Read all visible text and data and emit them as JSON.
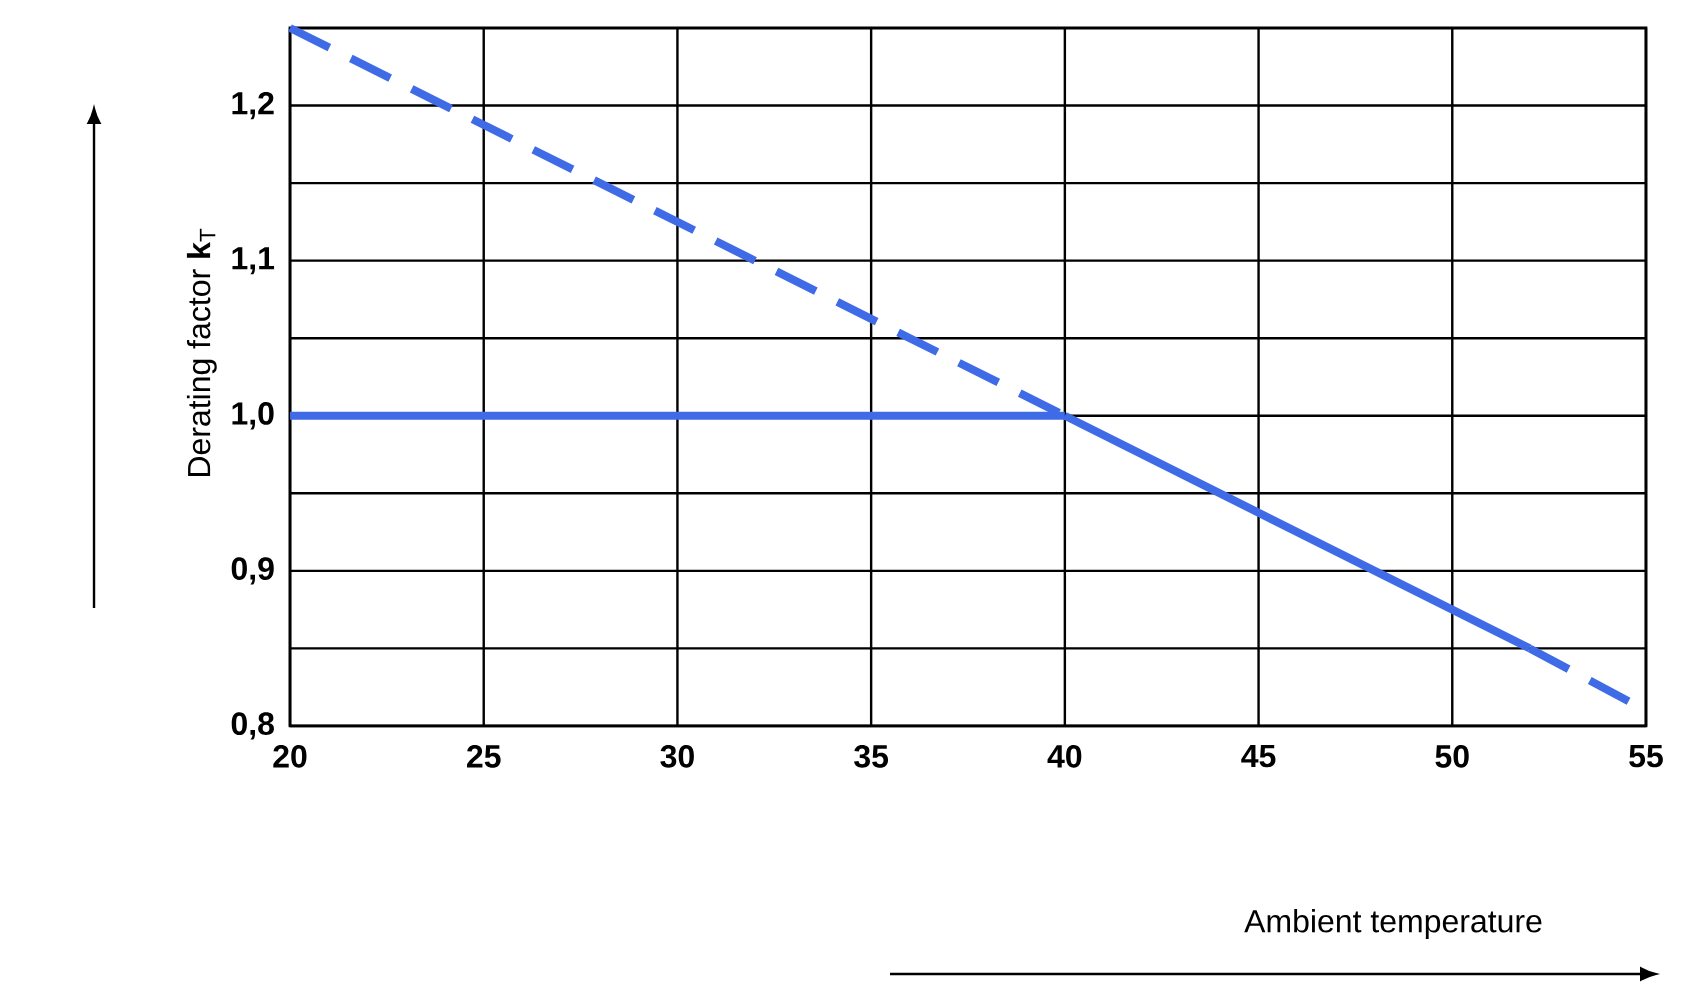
{
  "chart_data": {
    "type": "line",
    "xlabel": "Ambient temperature",
    "ylabel": "Derating factor **k**$_{T}$",
    "series": [
      {
        "x": [
          20,
          40
        ],
        "values": [
          1.25,
          1.0
        ],
        "color": "#3f6be6",
        "line_style": "dashed"
      },
      {
        "x": [
          20,
          40
        ],
        "values": [
          1.0,
          1.0
        ],
        "color": "#3f6be6",
        "line_style": "solid"
      },
      {
        "x": [
          40,
          52
        ],
        "values": [
          1.0,
          0.85
        ],
        "color": "#3f6be6",
        "line_style": "solid"
      },
      {
        "x": [
          52,
          55
        ],
        "values": [
          0.85,
          0.81
        ],
        "color": "#3f6be6",
        "line_style": "dashed"
      }
    ],
    "xlim": [
      20,
      55
    ],
    "xticks": [
      20,
      25,
      30,
      35,
      40,
      45,
      50,
      55
    ],
    "ylim": [
      0.8,
      1.25
    ],
    "yticks": [
      {
        "value": 0.8,
        "label": "0,8"
      },
      {
        "value": 0.85,
        "label": null
      },
      {
        "value": 0.9,
        "label": "0,9"
      },
      {
        "value": 0.95,
        "label": null
      },
      {
        "value": 1.0,
        "label": "1,0"
      },
      {
        "value": 1.05,
        "label": null
      },
      {
        "value": 1.1,
        "label": "1,1"
      },
      {
        "value": 1.15,
        "label": null
      },
      {
        "value": 1.2,
        "label": "1,2"
      }
    ],
    "grid": true,
    "marker": "none"
  }
}
